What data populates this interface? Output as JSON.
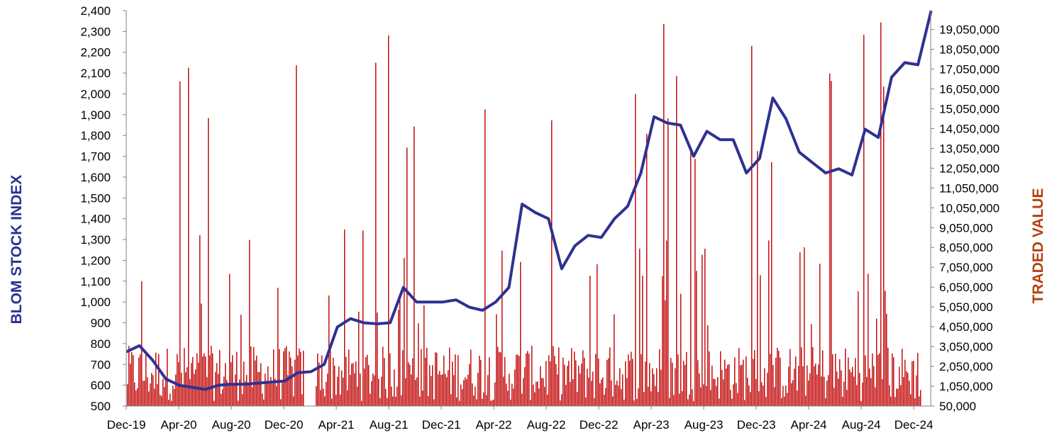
{
  "chart_data": {
    "type": "bar+line",
    "x_axis": {
      "tick_labels": [
        "Dec-19",
        "Apr-20",
        "Aug-20",
        "Dec-20",
        "Apr-21",
        "Aug-21",
        "Dec-21",
        "Apr-22",
        "Aug-22",
        "Dec-22",
        "Apr-23",
        "Aug-23",
        "Dec-23",
        "Apr-24",
        "Aug-24",
        "Dec-24"
      ]
    },
    "y_left": {
      "label": "BLOM STOCK INDEX",
      "range": [
        500,
        2400
      ],
      "step": 100,
      "tick_labels": [
        "500",
        "600",
        "700",
        "800",
        "900",
        "1,000",
        "1,100",
        "1,200",
        "1,300",
        "1,400",
        "1,500",
        "1,600",
        "1,700",
        "1,800",
        "1,900",
        "2,000",
        "2,100",
        "2,200",
        "2,300",
        "2,400"
      ]
    },
    "y_right": {
      "label": "TRADED VALUE",
      "range": [
        50000,
        20000000
      ],
      "step": 1000000,
      "tick_labels": [
        "50,000",
        "1,050,000",
        "2,050,000",
        "3,050,000",
        "4,050,000",
        "5,050,000",
        "6,050,000",
        "7,050,000",
        "8,050,000",
        "9,050,000",
        "10,050,000",
        "11,050,000",
        "12,050,000",
        "13,050,000",
        "14,050,000",
        "15,050,000",
        "16,050,000",
        "17,050,000",
        "18,050,000",
        "19,050,000"
      ]
    },
    "series": [
      {
        "name": "BLOM STOCK INDEX",
        "type": "line",
        "axis": "left",
        "points": [
          [
            "Dec-19",
            760
          ],
          [
            "Jan-20",
            790
          ],
          [
            "Feb-20",
            720
          ],
          [
            "Mar-20",
            630
          ],
          [
            "Apr-20",
            600
          ],
          [
            "May-20",
            590
          ],
          [
            "Jun-20",
            580
          ],
          [
            "Jul-20",
            600
          ],
          [
            "Aug-20",
            605
          ],
          [
            "Sep-20",
            605
          ],
          [
            "Oct-20",
            610
          ],
          [
            "Nov-20",
            615
          ],
          [
            "Dec-20",
            620
          ],
          [
            "Jan-21",
            660
          ],
          [
            "Feb-21",
            665
          ],
          [
            "Mar-21",
            700
          ],
          [
            "Apr-21",
            880
          ],
          [
            "May-21",
            920
          ],
          [
            "Jun-21",
            900
          ],
          [
            "Jul-21",
            895
          ],
          [
            "Aug-21",
            900
          ],
          [
            "Sep-21",
            1070
          ],
          [
            "Oct-21",
            1000
          ],
          [
            "Nov-21",
            1000
          ],
          [
            "Dec-21",
            1000
          ],
          [
            "Jan-22",
            1010
          ],
          [
            "Feb-22",
            975
          ],
          [
            "Mar-22",
            960
          ],
          [
            "Apr-22",
            1000
          ],
          [
            "May-22",
            1070
          ],
          [
            "Jun-22",
            1470
          ],
          [
            "Jul-22",
            1430
          ],
          [
            "Aug-22",
            1400
          ],
          [
            "Sep-22",
            1160
          ],
          [
            "Oct-22",
            1270
          ],
          [
            "Nov-22",
            1320
          ],
          [
            "Dec-22",
            1310
          ],
          [
            "Jan-23",
            1400
          ],
          [
            "Feb-23",
            1460
          ],
          [
            "Mar-23",
            1620
          ],
          [
            "Apr-23",
            1890
          ],
          [
            "May-23",
            1860
          ],
          [
            "Jun-23",
            1850
          ],
          [
            "Jul-23",
            1700
          ],
          [
            "Aug-23",
            1820
          ],
          [
            "Sep-23",
            1780
          ],
          [
            "Oct-23",
            1780
          ],
          [
            "Nov-23",
            1620
          ],
          [
            "Dec-23",
            1690
          ],
          [
            "Jan-24",
            1980
          ],
          [
            "Feb-24",
            1880
          ],
          [
            "Mar-24",
            1720
          ],
          [
            "Apr-24",
            1670
          ],
          [
            "May-24",
            1620
          ],
          [
            "Jun-24",
            1640
          ],
          [
            "Jul-24",
            1610
          ],
          [
            "Aug-24",
            1830
          ],
          [
            "Sep-24",
            1790
          ],
          [
            "Oct-24",
            2080
          ],
          [
            "Nov-24",
            2150
          ],
          [
            "Dec-24",
            2140
          ],
          [
            "Jan-25",
            2400
          ]
        ]
      },
      {
        "name": "TRADED VALUE",
        "type": "bar",
        "axis": "right",
        "note_pattern": "daily bars, typical 0.5M-3M, frequent spikes 4M-20M"
      }
    ],
    "colors": {
      "line": "#2e3192",
      "bars": "#c00000",
      "left_title": "#2e3192",
      "right_title": "#b5410f"
    },
    "legend": "none",
    "grid": false
  }
}
